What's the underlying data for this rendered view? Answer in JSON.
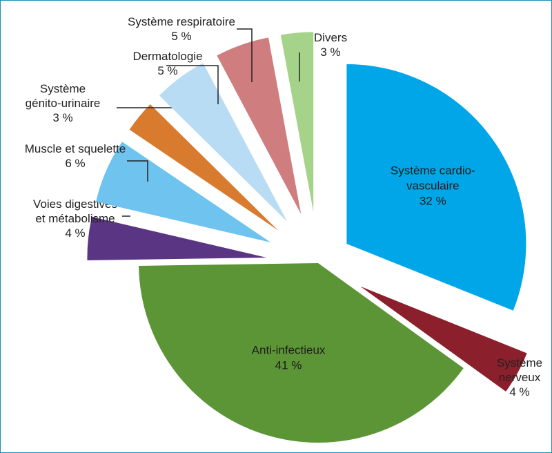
{
  "chart_data": {
    "type": "pie",
    "title": "",
    "slices": [
      {
        "name": "Système cardio-vasculaire",
        "lines": [
          "Système cardio-",
          "vasculaire",
          "32 %"
        ],
        "value": 32,
        "color": "#00a6e8"
      },
      {
        "name": "Système nerveux",
        "lines": [
          "Système",
          "nerveux",
          "4 %"
        ],
        "value": 4,
        "color": "#8b1f2b"
      },
      {
        "name": "Anti-infectieux",
        "lines": [
          "Anti-infectieux",
          "41 %"
        ],
        "value": 41,
        "color": "#5c9535"
      },
      {
        "name": "Voies digestives et métabolisme",
        "lines": [
          "Voies digestives",
          "et métabolisme",
          "4 %"
        ],
        "value": 4,
        "color": "#5a3583"
      },
      {
        "name": "Muscle et squelette",
        "lines": [
          "Muscle et squelette",
          "6 %"
        ],
        "value": 6,
        "color": "#6ec3ef"
      },
      {
        "name": "Système génito-urinaire",
        "lines": [
          "Système",
          "génito-urinaire",
          "3 %"
        ],
        "value": 3,
        "color": "#d97b2f"
      },
      {
        "name": "Dermatologie",
        "lines": [
          "Dermatologie",
          "5 %"
        ],
        "value": 5,
        "color": "#b7dcf4"
      },
      {
        "name": "Système respiratoire",
        "lines": [
          "Système respiratoire",
          "5 %"
        ],
        "value": 5,
        "color": "#d07d7f"
      },
      {
        "name": "Divers",
        "lines": [
          "Divers",
          "3 %"
        ],
        "value": 3,
        "color": "#a6d38a"
      }
    ]
  }
}
